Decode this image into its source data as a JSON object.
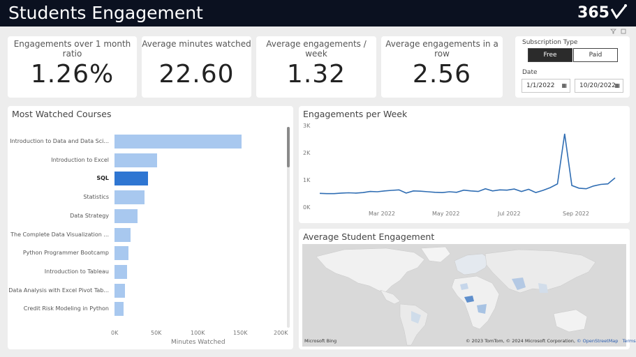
{
  "header": {
    "title": "Students Engagement",
    "logo_text": "365"
  },
  "kpis": [
    {
      "label": "Engagements over 1 month ratio",
      "value": "1.26%"
    },
    {
      "label": "Average minutes watched",
      "value": "22.60"
    },
    {
      "label": "Average engagements / week",
      "value": "1.32"
    },
    {
      "label": "Average engagements in a row",
      "value": "2.56"
    }
  ],
  "slicer": {
    "subscription_label": "Subscription Type",
    "options": [
      "Free",
      "Paid"
    ],
    "selected": "Free",
    "date_label": "Date",
    "date_from": "1/1/2022",
    "date_to": "10/20/2022"
  },
  "courses": {
    "title": "Most Watched Courses",
    "xlabel": "Minutes Watched",
    "ticks": [
      "0K",
      "50K",
      "100K",
      "150K",
      "200K"
    ]
  },
  "weekly": {
    "title": "Engagements per Week",
    "yticks": [
      "3K",
      "2K",
      "1K",
      "0K"
    ],
    "xticks": [
      "Mar 2022",
      "May 2022",
      "Jul 2022",
      "Sep 2022"
    ]
  },
  "map": {
    "title": "Average Student Engagement",
    "bing": "Microsoft Bing",
    "attribution": "© 2023 TomTom, © 2024 Microsoft Corporation, ",
    "osm": "© OpenStreetMap",
    "terms": "Terms"
  },
  "colors": {
    "header_bg": "#0b1120",
    "bar": "#a8c8ef",
    "bar_selected": "#2f76d2",
    "line": "#2f6db3"
  },
  "chart_data": [
    {
      "type": "bar",
      "orientation": "horizontal",
      "title": "Most Watched Courses",
      "xlabel": "Minutes Watched",
      "xlim": [
        0,
        200000
      ],
      "categories": [
        "Introduction to Data and Data Sci...",
        "Introduction to Excel",
        "SQL",
        "Statistics",
        "Data Strategy",
        "The Complete Data Visualization ...",
        "Python Programmer Bootcamp",
        "Introduction to Tableau",
        "Data Analysis with Excel Pivot Tab...",
        "Credit Risk Modeling in Python"
      ],
      "values": [
        153000,
        51000,
        40000,
        36000,
        28000,
        19000,
        17000,
        15000,
        13000,
        11000
      ],
      "highlighted": "SQL"
    },
    {
      "type": "line",
      "title": "Engagements per Week",
      "ylim": [
        0,
        3000
      ],
      "x": [
        "2022-01-03",
        "2022-01-10",
        "2022-01-17",
        "2022-01-24",
        "2022-01-31",
        "2022-02-07",
        "2022-02-14",
        "2022-02-21",
        "2022-02-28",
        "2022-03-07",
        "2022-03-14",
        "2022-03-21",
        "2022-03-28",
        "2022-04-04",
        "2022-04-11",
        "2022-04-18",
        "2022-04-25",
        "2022-05-02",
        "2022-05-09",
        "2022-05-16",
        "2022-05-23",
        "2022-05-30",
        "2022-06-06",
        "2022-06-13",
        "2022-06-20",
        "2022-06-27",
        "2022-07-04",
        "2022-07-11",
        "2022-07-18",
        "2022-07-25",
        "2022-08-01",
        "2022-08-08",
        "2022-08-15",
        "2022-08-22",
        "2022-08-29",
        "2022-09-05",
        "2022-09-12",
        "2022-09-19",
        "2022-09-26",
        "2022-10-03",
        "2022-10-10",
        "2022-10-17"
      ],
      "series": [
        {
          "values": [
            530,
            520,
            520,
            540,
            550,
            540,
            560,
            600,
            590,
            620,
            640,
            660,
            540,
            620,
            610,
            590,
            570,
            560,
            590,
            570,
            650,
            620,
            600,
            700,
            620,
            660,
            650,
            690,
            600,
            680,
            560,
            640,
            740,
            880,
            2720,
            820,
            720,
            700,
            800,
            860,
            880,
            1100
          ]
        }
      ]
    }
  ]
}
